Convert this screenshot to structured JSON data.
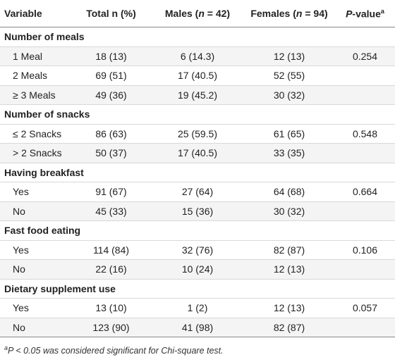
{
  "table": {
    "header": [
      "Variable",
      "Total n (%)",
      [
        "Males (",
        "n",
        " = 42)"
      ],
      [
        "Females (",
        "n",
        " = 94)"
      ],
      [
        "P",
        "-value",
        "a"
      ]
    ],
    "groups": [
      {
        "title": "Number of meals",
        "rows": [
          [
            "1 Meal",
            "18 (13)",
            "6 (14.3)",
            "12 (13)",
            "0.254"
          ],
          [
            "2 Meals",
            "69 (51)",
            "17 (40.5)",
            "52 (55)"
          ],
          [
            "≥ 3 Meals",
            "49 (36)",
            "19 (45.2)",
            "30 (32)"
          ]
        ]
      },
      {
        "title": "Number of snacks",
        "rows": [
          [
            "≤ 2 Snacks",
            "86 (63)",
            "25 (59.5)",
            "61 (65)",
            "0.548"
          ],
          [
            "> 2 Snacks",
            "50 (37)",
            "17 (40.5)",
            "33 (35)"
          ]
        ]
      },
      {
        "title": "Having breakfast",
        "rows": [
          [
            "Yes",
            "91 (67)",
            "27 (64)",
            "64 (68)",
            "0.664"
          ],
          [
            "No",
            "45 (33)",
            "15 (36)",
            "30 (32)"
          ]
        ]
      },
      {
        "title": "Fast food eating",
        "rows": [
          [
            "Yes",
            "114 (84)",
            "32 (76)",
            "82 (87)",
            "0.106"
          ],
          [
            "No",
            "22 (16)",
            "10 (24)",
            "12 (13)"
          ]
        ]
      },
      {
        "title": "Dietary supplement use",
        "rows": [
          [
            "Yes",
            "13 (10)",
            "1 (2)",
            "12 (13)",
            "0.057"
          ],
          [
            "No",
            "123 (90)",
            "41 (98)",
            "82 (87)"
          ]
        ]
      }
    ],
    "footnote": [
      "a",
      "P",
      " < 0.05 was considered significant for Chi-square test."
    ]
  }
}
